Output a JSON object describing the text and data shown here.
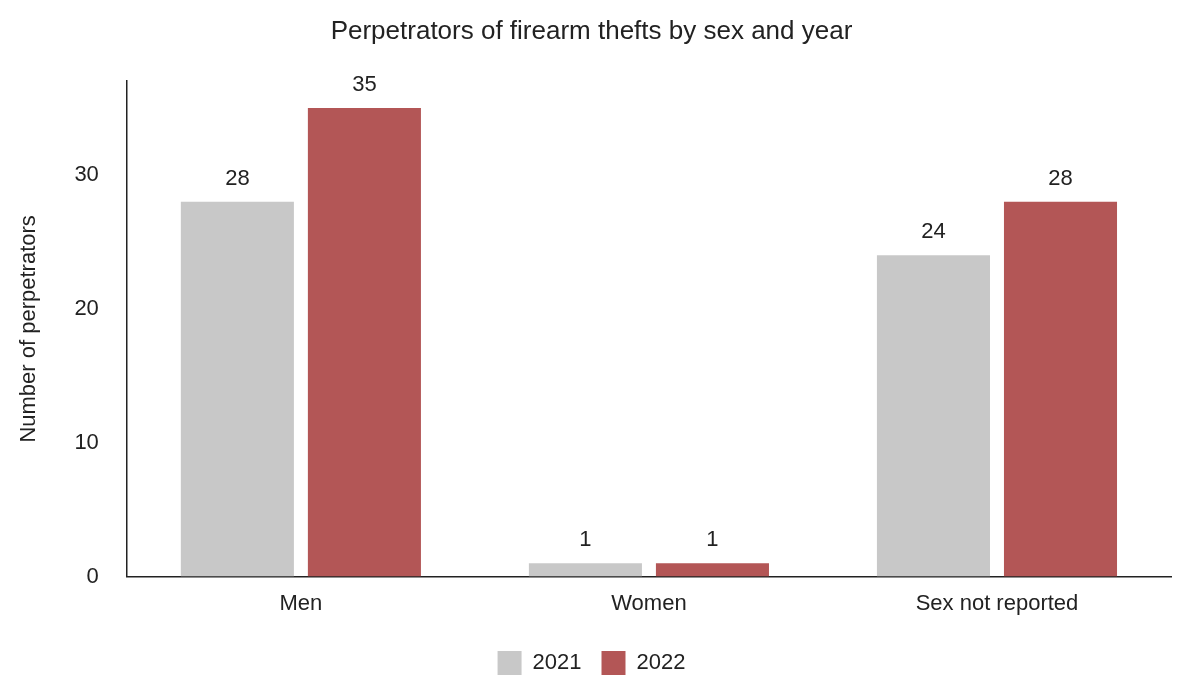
{
  "chart_data": {
    "type": "bar",
    "title": "Perpetrators of firearm thefts by sex and year",
    "ylabel": "Number of perpetrators",
    "categories": [
      "Men",
      "Women",
      "Sex not reported"
    ],
    "series": [
      {
        "name": "2021",
        "color": "#c8c8c8",
        "values": [
          28,
          1,
          24
        ]
      },
      {
        "name": "2022",
        "color": "#b35656",
        "values": [
          35,
          1,
          28
        ]
      }
    ],
    "ylim": [
      0,
      37
    ],
    "yticks": [
      0,
      10,
      20,
      30
    ],
    "grid": false,
    "legend": "bottom",
    "data_labels": true
  }
}
